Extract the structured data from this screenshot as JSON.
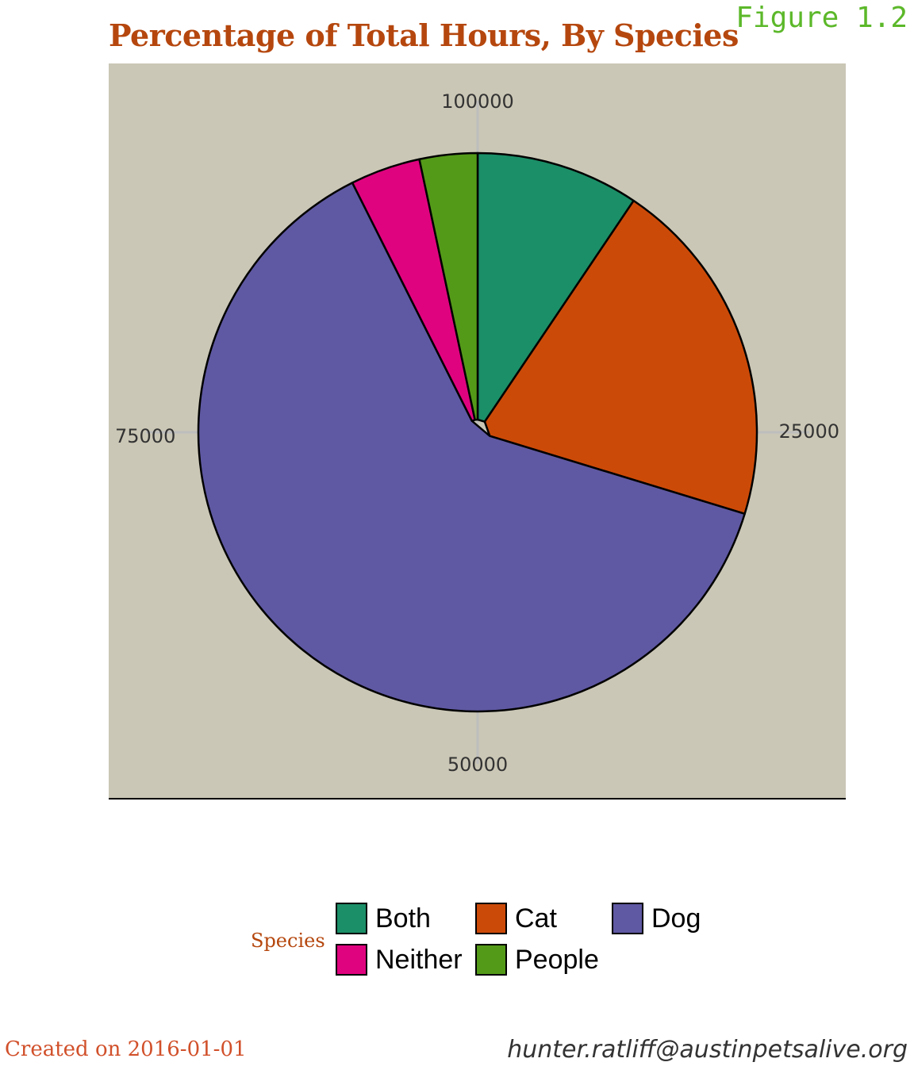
{
  "figure_label": "Figure 1.2",
  "footer": {
    "created": "Created on 2016-01-01",
    "author": "hunter.ratliff@austinpetsalive.org"
  },
  "colors": {
    "title": "#b5470e",
    "figure_label": "#5cb82a",
    "panel_background": "#cbc7b6",
    "grid": "#bdbdbd"
  },
  "chart_data": {
    "type": "pie",
    "title": "Percentage of Total Hours, By Species",
    "legend_title": "Species",
    "legend_position": "bottom",
    "axis_ticks": [
      "100000",
      "25000",
      "50000",
      "75000"
    ],
    "axis_max": 100000,
    "categories": [
      "Both",
      "Cat",
      "Dog",
      "Neither",
      "People"
    ],
    "values": [
      9300,
      20000,
      62000,
      4000,
      3300
    ],
    "colors": [
      "#1b8f67",
      "#cc4a08",
      "#5f59a3",
      "#e0037f",
      "#549a19"
    ]
  }
}
